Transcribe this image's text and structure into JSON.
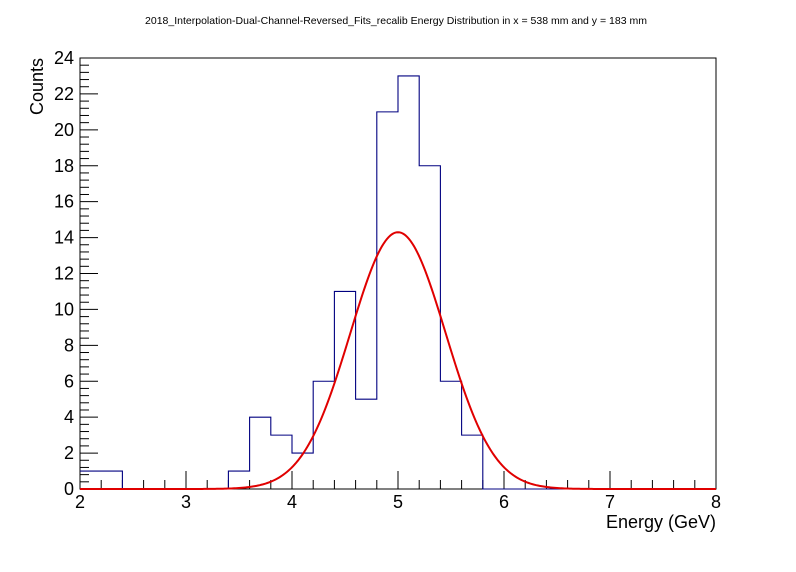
{
  "chart_data": {
    "type": "histogram",
    "title": "2018_Interpolation-Dual-Channel-Reversed_Fits_recalib Energy Distribution in x = 538 mm and y = 183 mm",
    "xlabel": "Energy (GeV)",
    "ylabel": "Counts",
    "xlim": [
      2,
      8
    ],
    "ylim": [
      0,
      24
    ],
    "x_ticks": [
      "2",
      "3",
      "4",
      "5",
      "6",
      "7",
      "8"
    ],
    "y_ticks": [
      "0",
      "2",
      "4",
      "6",
      "8",
      "10",
      "12",
      "14",
      "16",
      "18",
      "20",
      "22",
      "24"
    ],
    "bins": {
      "edges": [
        2.0,
        2.2,
        2.4,
        2.6,
        2.8,
        3.0,
        3.2,
        3.4,
        3.6,
        3.8,
        4.0,
        4.2,
        4.4,
        4.6,
        4.8,
        5.0,
        5.2,
        5.4,
        5.6,
        5.8,
        6.0,
        6.2,
        6.4,
        6.6,
        6.8,
        7.0,
        7.2,
        7.4,
        7.6,
        7.8,
        8.0
      ],
      "counts": [
        1,
        1,
        0,
        0,
        0,
        0,
        0,
        1,
        4,
        3,
        2,
        6,
        11,
        5,
        21,
        23,
        18,
        6,
        3,
        0,
        0,
        0,
        0,
        0,
        0,
        0,
        0,
        0,
        0,
        0
      ]
    },
    "fit": {
      "type": "gaussian",
      "amplitude": 14.3,
      "mean": 5.0,
      "sigma": 0.45
    },
    "colors": {
      "histogram": "#000080",
      "fit": "#e00000",
      "axes": "#000000"
    },
    "grid": false,
    "legend": "none"
  }
}
